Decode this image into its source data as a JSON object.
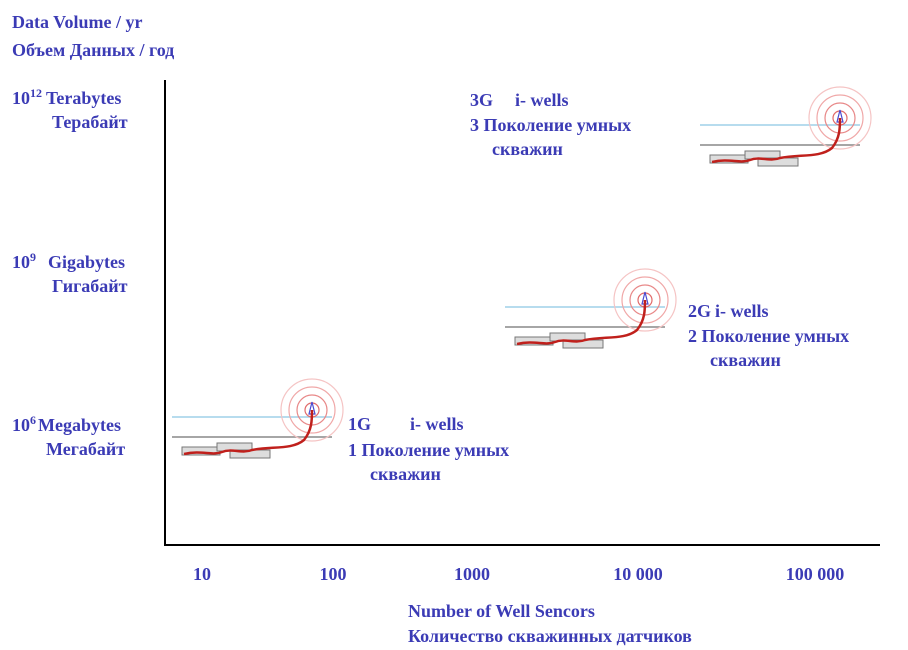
{
  "title": {
    "line1": "Data Volume / yr",
    "line2": "Объем Данных / год"
  },
  "y_axis": {
    "levels": [
      {
        "base": "10",
        "exponent": "12",
        "label": "Terabytes",
        "label_ru": "Терабайт"
      },
      {
        "base": "10",
        "exponent": "9",
        "label": "Gigabytes",
        "label_ru": "Гигабайт"
      },
      {
        "base": "10",
        "exponent": "6",
        "label": "Megabytes",
        "label_ru": "Мегабайт"
      }
    ]
  },
  "x_axis": {
    "ticks": [
      "10",
      "100",
      "1000",
      "10 000",
      "100 000"
    ],
    "title": "Number of Well Sencors",
    "title_ru": "Количество скважинных датчиков"
  },
  "generations": [
    {
      "code": "3G",
      "name": "i- wells",
      "line2": "3 Поколение умных",
      "line3": "скважин"
    },
    {
      "code": "2G",
      "name": "i- wells",
      "line2": "2 Поколение умных",
      "line3": "скважин"
    },
    {
      "code": "1G",
      "name": "i- wells",
      "line2": "1 Поколение умных",
      "line3": "скважин"
    }
  ]
}
